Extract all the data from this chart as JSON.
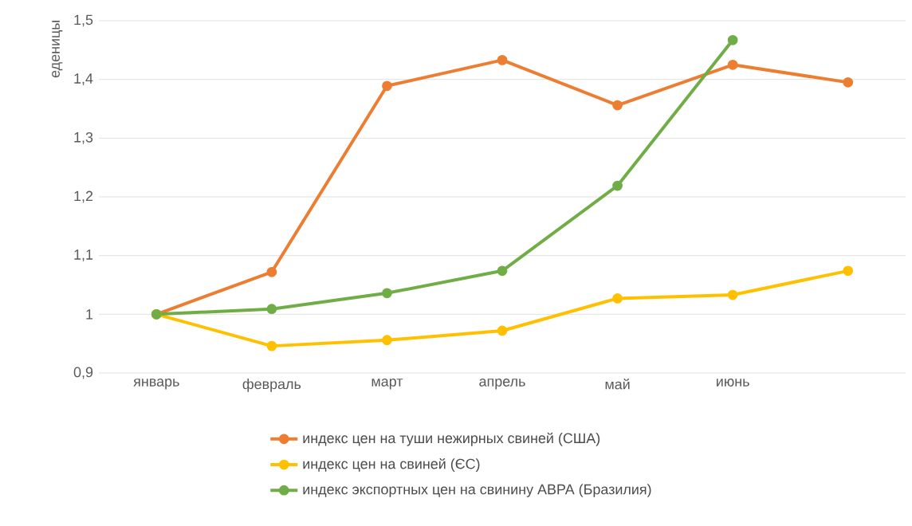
{
  "chart_data": {
    "type": "line",
    "ylabel": "еденицы",
    "categories": [
      "январь",
      "февраль",
      "март",
      "апрель",
      "май",
      "июнь",
      null
    ],
    "series": [
      {
        "name": "индекс цен на туши нежирных свиней (США)",
        "color": "#ed7d31",
        "values": [
          1.0,
          1.072,
          1.389,
          1.433,
          1.356,
          1.425,
          1.395
        ]
      },
      {
        "name": "индекс цен на свиней (ЄС)",
        "color": "#ffc000",
        "values": [
          1.0,
          0.946,
          0.956,
          0.972,
          1.027,
          1.033,
          1.074
        ]
      },
      {
        "name": "индекс экспортных цен на свинину АВРА (Бразилия)",
        "color": "#70ad47",
        "values": [
          1.0,
          1.009,
          1.036,
          1.074,
          1.219,
          1.467,
          null
        ]
      }
    ],
    "ylim": [
      0.9,
      1.5
    ],
    "yticks": [
      {
        "value": 0.9,
        "label": "0,9"
      },
      {
        "value": 1,
        "label": "1"
      },
      {
        "value": 1.1,
        "label": "1,1"
      },
      {
        "value": 1.2,
        "label": "1,2"
      },
      {
        "value": 1.3,
        "label": "1,3"
      },
      {
        "value": 1.4,
        "label": "1,4"
      },
      {
        "value": 1.5,
        "label": "1,5"
      }
    ],
    "grid": "y",
    "legend": "bottom",
    "marker": "circle",
    "line_style": "solid"
  }
}
